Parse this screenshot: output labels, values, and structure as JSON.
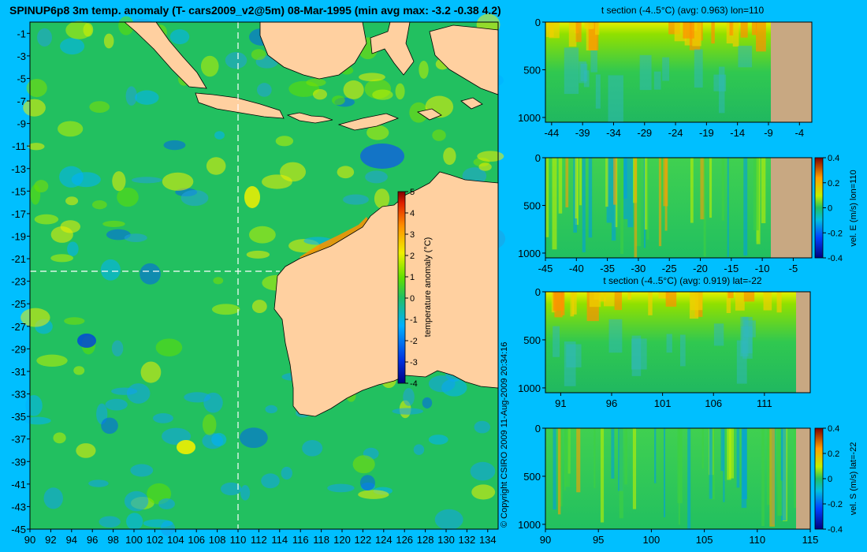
{
  "main_title": "SPINUP6p8 3m temp. anomaly (T- cars2009_v2@5m) 08-Mar-1995 (min avg max: -3.2 -0.38 4.2)",
  "copyright": "© Copyright CSIRO 2009  11-Aug-2009 20:34:16",
  "colors": {
    "background": "#00BFFF",
    "land": "#FFD0A0",
    "section_land": "#C8A882",
    "ocean_base": "#22C060"
  },
  "chart_data": [
    {
      "type": "heatmap",
      "name": "map",
      "xlim": [
        90,
        135
      ],
      "ylim": [
        -45,
        0
      ],
      "x_ticks": [
        "90",
        "92",
        "94",
        "96",
        "98",
        "100",
        "102",
        "104",
        "106",
        "108",
        "110",
        "112",
        "114",
        "116",
        "118",
        "120",
        "122",
        "124",
        "126",
        "128",
        "130",
        "132",
        "134"
      ],
      "y_ticks": [
        "-1",
        "-3",
        "-5",
        "-7",
        "-9",
        "-11",
        "-13",
        "-15",
        "-17",
        "-19",
        "-21",
        "-23",
        "-25",
        "-27",
        "-29",
        "-31",
        "-33",
        "-35",
        "-37",
        "-39",
        "-41",
        "-43",
        "-45"
      ],
      "section_lon": 110,
      "section_lat": -22,
      "colorbar": {
        "label": "temperature anomaly (°C)",
        "range": [
          -4,
          5
        ],
        "ticks": [
          "5",
          "4",
          "3",
          "2",
          "1",
          "0",
          "-1",
          "-2",
          "-3",
          "-4"
        ]
      }
    },
    {
      "type": "heatmap",
      "name": "t-section-lon",
      "title": "t section (-4..5°C) (avg: 0.963) lon=110",
      "xlim": [
        -45,
        -2
      ],
      "ylim": [
        1050,
        0
      ],
      "x_ticks": [
        "-44",
        "-39",
        "-34",
        "-29",
        "-24",
        "-19",
        "-14",
        "-9",
        "-4"
      ],
      "y_ticks": [
        "0",
        "500",
        "1000"
      ],
      "land_from": -7.5
    },
    {
      "type": "heatmap",
      "name": "vel-e-section",
      "xlim": [
        -45,
        -2
      ],
      "ylim": [
        1050,
        0
      ],
      "x_ticks": [
        "-45",
        "-40",
        "-35",
        "-30",
        "-25",
        "-20",
        "-15",
        "-10",
        "-5"
      ],
      "y_ticks": [
        "0",
        "500",
        "1000"
      ],
      "land_from": -7.5,
      "colorbar": {
        "label": "vel. E (m/s) lon=110",
        "range": [
          -0.4,
          0.4
        ],
        "ticks": [
          "0.4",
          "0.2",
          "0",
          "-0.2",
          "-0.4"
        ]
      }
    },
    {
      "type": "heatmap",
      "name": "t-section-lat",
      "title": "t section (-4..5°C) (avg: 0.919) lat=-22",
      "xlim": [
        89.5,
        115.5
      ],
      "ylim": [
        1050,
        0
      ],
      "x_ticks": [
        "91",
        "96",
        "101",
        "106",
        "111"
      ],
      "y_ticks": [
        "0",
        "500",
        "1000"
      ],
      "land_from": 114
    },
    {
      "type": "heatmap",
      "name": "vel-s-section",
      "xlim": [
        90,
        115
      ],
      "ylim": [
        1050,
        0
      ],
      "x_ticks": [
        "90",
        "95",
        "100",
        "105",
        "110",
        "115"
      ],
      "y_ticks": [
        "0",
        "500",
        "1000"
      ],
      "land_from": 113.8,
      "colorbar": {
        "label": "vel. S (m/s) lat=-22",
        "range": [
          -0.4,
          0.4
        ],
        "ticks": [
          "0.4",
          "0.2",
          "0",
          "-0.2",
          "-0.4"
        ]
      }
    }
  ]
}
